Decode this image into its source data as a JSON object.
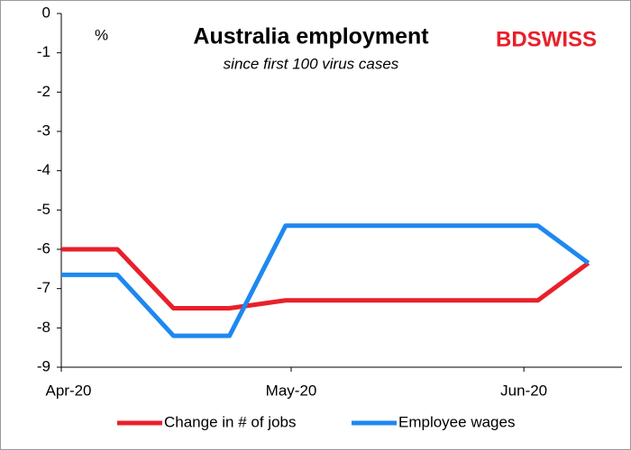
{
  "chart_data": {
    "type": "line",
    "title": "Australia employment",
    "subtitle": "since first 100 virus cases",
    "y_label": "%",
    "brand": "BDSWISS",
    "x": [
      0,
      1,
      2,
      3,
      4,
      8.5,
      9.4
    ],
    "xlim": [
      0,
      10
    ],
    "xticks": [
      {
        "value": 0,
        "label": "Apr-20"
      },
      {
        "value": 4.1,
        "label": "May-20"
      },
      {
        "value": 8.25,
        "label": "Jun-20"
      }
    ],
    "ylim": [
      -9,
      0
    ],
    "yticks": [
      0,
      -1,
      -2,
      -3,
      -4,
      -5,
      -6,
      -7,
      -8,
      -9
    ],
    "legend": "bottom",
    "series": [
      {
        "name": "Change in # of jobs",
        "color": "#e8202a",
        "values": [
          -6.0,
          -6.0,
          -7.5,
          -7.5,
          -7.3,
          -7.3,
          -6.35
        ]
      },
      {
        "name": "Employee wages",
        "color": "#1e88f0",
        "values": [
          -6.65,
          -6.65,
          -8.2,
          -8.2,
          -5.4,
          -5.4,
          -6.35
        ]
      }
    ]
  }
}
